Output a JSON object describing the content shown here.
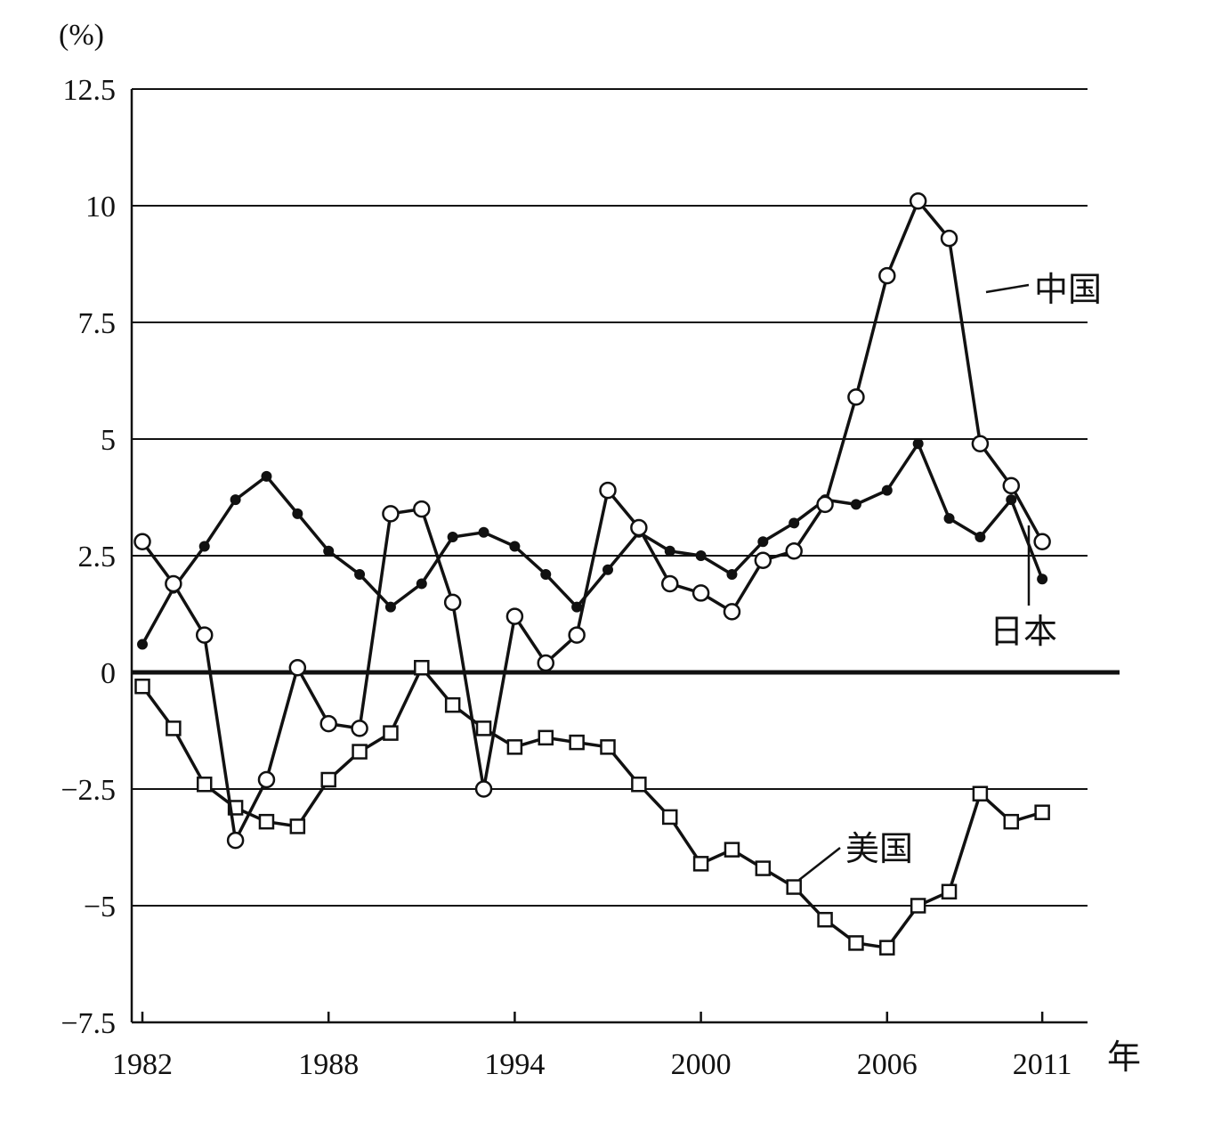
{
  "chart_data": {
    "type": "line",
    "unit_label": "(%)",
    "x_axis_suffix": "年",
    "xlim": [
      1982,
      2012
    ],
    "ylim": [
      -7.5,
      12.5
    ],
    "y_ticks": [
      12.5,
      10,
      7.5,
      5,
      2.5,
      0,
      -2.5,
      -5,
      -7.5
    ],
    "y_tick_labels": [
      "12.5",
      "10",
      "7.5",
      "5",
      "2.5",
      "0",
      "−2.5",
      "−5",
      "−7.5"
    ],
    "x_ticks": [
      1982,
      1988,
      1994,
      2000,
      2006,
      2011
    ],
    "x_tick_labels": [
      "1982",
      "1988",
      "1994",
      "2000",
      "2006",
      "2011"
    ],
    "grid": true,
    "series": [
      {
        "name": "中国",
        "marker": "open-circle",
        "x": [
          1982,
          1983,
          1984,
          1985,
          1986,
          1987,
          1988,
          1989,
          1990,
          1991,
          1992,
          1993,
          1994,
          1995,
          1996,
          1997,
          1998,
          1999,
          2000,
          2001,
          2002,
          2003,
          2004,
          2005,
          2006,
          2007,
          2008,
          2009,
          2010,
          2011
        ],
        "values": [
          2.8,
          1.9,
          0.8,
          -3.6,
          -2.3,
          0.1,
          -1.1,
          -1.2,
          3.4,
          3.5,
          1.5,
          -2.5,
          1.2,
          0.2,
          0.8,
          3.9,
          3.1,
          1.9,
          1.7,
          1.3,
          2.4,
          2.6,
          3.6,
          5.9,
          8.5,
          10.1,
          9.3,
          4.9,
          4.0,
          2.8
        ]
      },
      {
        "name": "日本",
        "marker": "filled-dot",
        "x": [
          1982,
          1983,
          1984,
          1985,
          1986,
          1987,
          1988,
          1989,
          1990,
          1991,
          1992,
          1993,
          1994,
          1995,
          1996,
          1997,
          1998,
          1999,
          2000,
          2001,
          2002,
          2003,
          2004,
          2005,
          2006,
          2007,
          2008,
          2009,
          2010,
          2011
        ],
        "values": [
          0.6,
          1.8,
          2.7,
          3.7,
          4.2,
          3.4,
          2.6,
          2.1,
          1.4,
          1.9,
          2.9,
          3.0,
          2.7,
          2.1,
          1.4,
          2.2,
          3.0,
          2.6,
          2.5,
          2.1,
          2.8,
          3.2,
          3.7,
          3.6,
          3.9,
          4.9,
          3.3,
          2.9,
          3.7,
          2.0
        ]
      },
      {
        "name": "美国",
        "marker": "open-square",
        "x": [
          1982,
          1983,
          1984,
          1985,
          1986,
          1987,
          1988,
          1989,
          1990,
          1991,
          1992,
          1993,
          1994,
          1995,
          1996,
          1997,
          1998,
          1999,
          2000,
          2001,
          2002,
          2003,
          2004,
          2005,
          2006,
          2007,
          2008,
          2009,
          2010,
          2011
        ],
        "values": [
          -0.3,
          -1.2,
          -2.4,
          -2.9,
          -3.2,
          -3.3,
          -2.3,
          -1.7,
          -1.3,
          0.1,
          -0.7,
          -1.2,
          -1.6,
          -1.4,
          -1.5,
          -1.6,
          -2.4,
          -3.1,
          -4.1,
          -3.8,
          -4.2,
          -4.6,
          -5.3,
          -5.8,
          -5.9,
          -5.0,
          -4.7,
          -2.6,
          -3.2,
          -3.0
        ]
      }
    ]
  }
}
